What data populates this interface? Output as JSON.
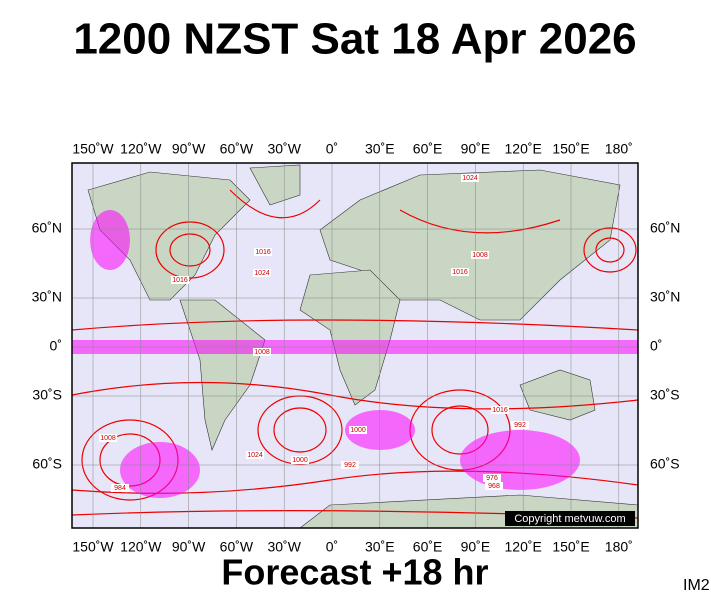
{
  "header": {
    "title": "1200 NZST Sat 18 Apr 2026"
  },
  "map": {
    "longitude_labels": [
      "150˚W",
      "120˚W",
      "90˚W",
      "60˚W",
      "30˚W",
      "0˚",
      "30˚E",
      "60˚E",
      "90˚E",
      "120˚E",
      "150˚E",
      "180˚"
    ],
    "latitude_labels": [
      "60˚N",
      "30˚N",
      "0˚",
      "30˚S",
      "60˚S"
    ],
    "isobar_labels": [
      "1024",
      "1016",
      "1008",
      "1016",
      "1024",
      "1016",
      "1008",
      "1000",
      "992",
      "984",
      "1008",
      "1016",
      "1000",
      "976",
      "968",
      "1024",
      "992"
    ],
    "copyright": "Copyright metvuw.com"
  },
  "footer": {
    "forecast": "Forecast +18 hr",
    "image_id": "IM2"
  }
}
